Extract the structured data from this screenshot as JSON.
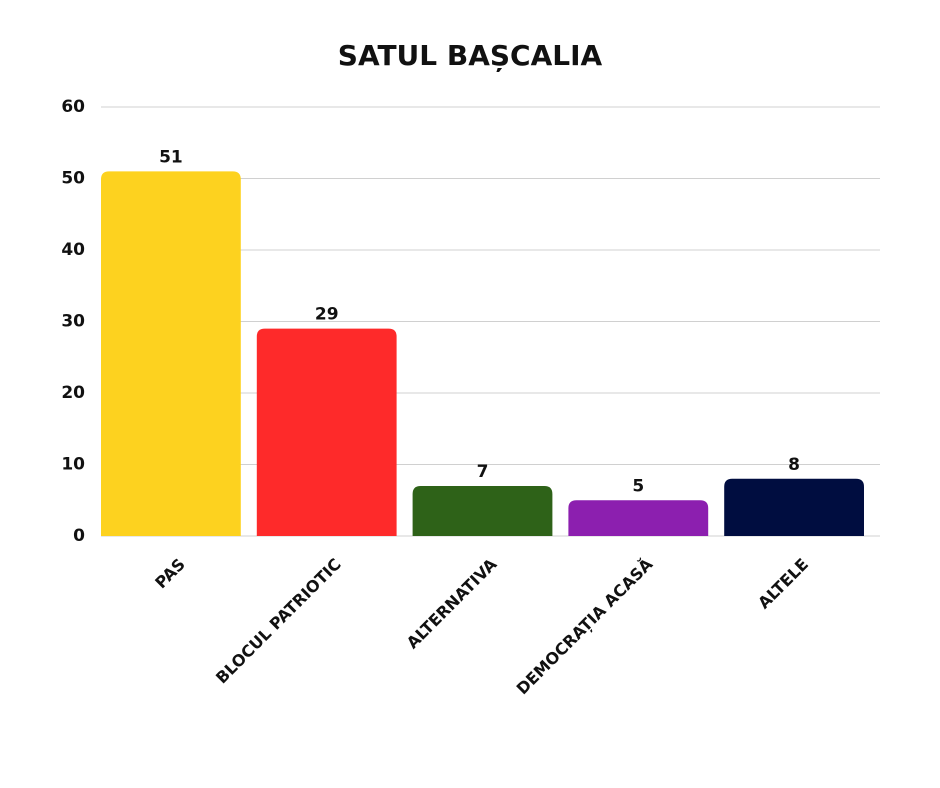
{
  "chart_data": {
    "type": "bar",
    "title": "SATUL BAȘCALIA",
    "categories": [
      "PAS",
      "BLOCUL PATRIOTIC",
      "ALTERNATIVA",
      "DEMOCRAȚIA ACASĂ",
      "ALTELE"
    ],
    "values": [
      51,
      29,
      7,
      5,
      8
    ],
    "colors": [
      "#fdd21f",
      "#fe2a2a",
      "#2e6218",
      "#8c1faf",
      "#000d40"
    ],
    "ylim": [
      0,
      60
    ],
    "yticks": [
      0,
      10,
      20,
      30,
      40,
      50,
      60
    ],
    "grid": true
  }
}
